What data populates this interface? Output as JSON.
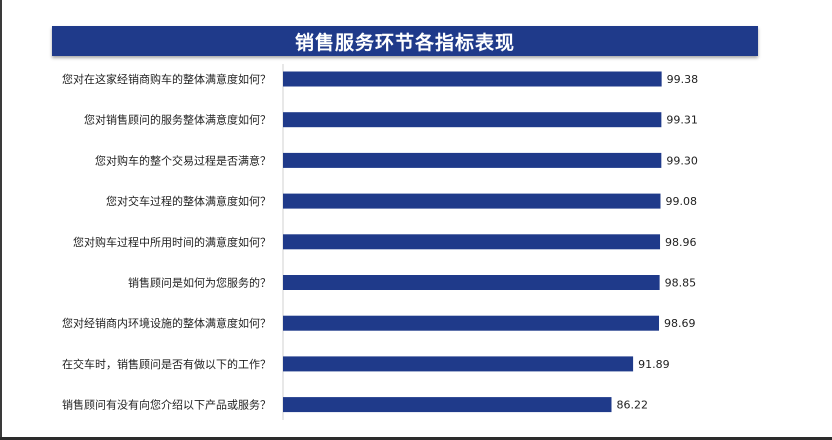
{
  "chart_data": {
    "type": "bar",
    "orientation": "horizontal",
    "title": "销售服务环节各指标表现",
    "categories": [
      "您对在这家经销商购车的整体满意度如何？",
      "您对销售顾问的服务整体满意度如何？",
      "您对购车的整个交易过程是否满意？",
      "您对交车过程的整体满意度如何？",
      "您对购车过程中所用时间的满意度如何？",
      "销售顾问是如何为您服务的？",
      "您对经销商内环境设施的整体满意度如何？",
      "在交车时，销售顾问是否有做以下的工作？",
      "销售顾问有没有向您介绍以下产品或服务？"
    ],
    "values": [
      99.38,
      99.31,
      99.3,
      99.08,
      98.96,
      98.85,
      98.69,
      91.89,
      86.22
    ],
    "value_labels": [
      "99.38",
      "99.31",
      "99.30",
      "99.08",
      "98.96",
      "98.85",
      "98.69",
      "91.89",
      "86.22"
    ],
    "bar_color": "#1f3a8a",
    "xlim": [
      0,
      100
    ],
    "grid": false,
    "legend": "none"
  }
}
